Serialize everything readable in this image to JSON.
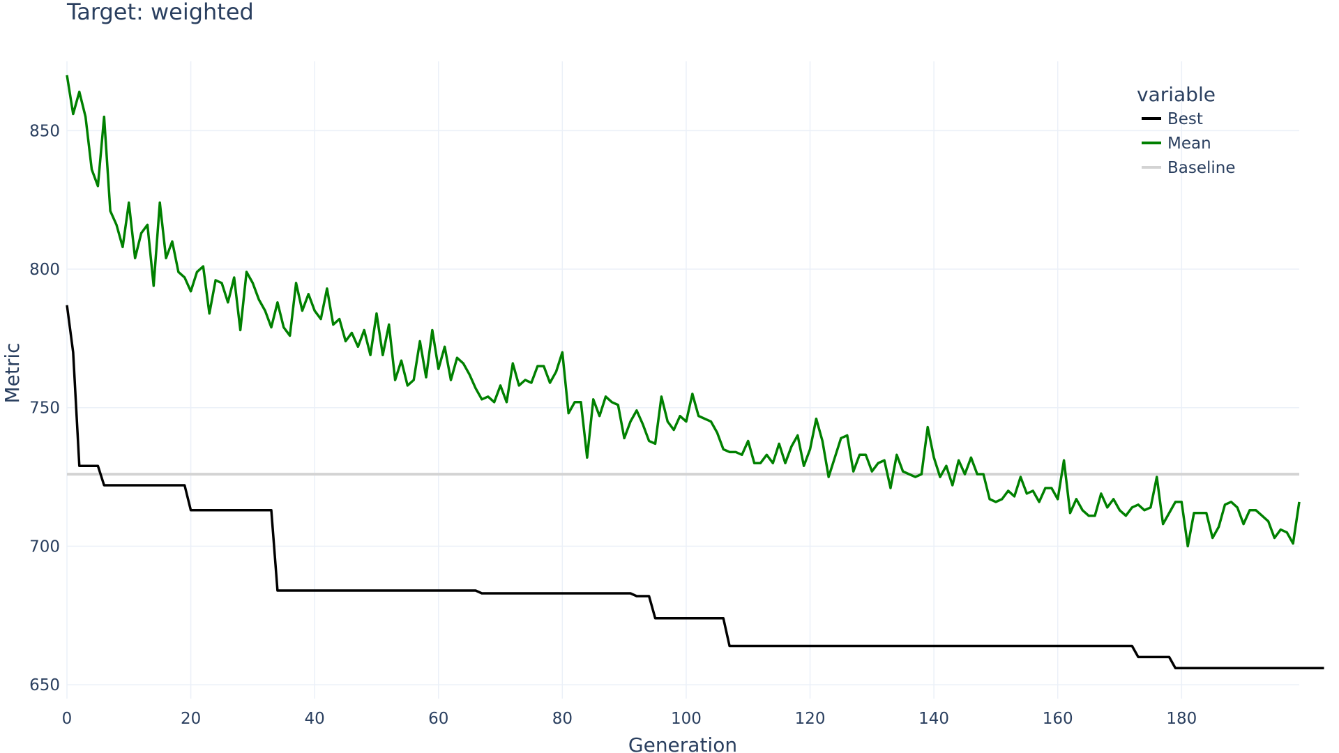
{
  "chart_data": {
    "type": "line",
    "title": "Target: weighted",
    "xlabel": "Generation",
    "ylabel": "Metric",
    "xlim": [
      0,
      199
    ],
    "ylim": [
      645,
      875
    ],
    "x_ticks": [
      0,
      20,
      40,
      60,
      80,
      100,
      120,
      140,
      160,
      180
    ],
    "y_ticks": [
      650,
      700,
      750,
      800,
      850
    ],
    "grid": true,
    "legend": {
      "title": "variable",
      "position": "top-right"
    },
    "series": [
      {
        "name": "Best",
        "color": "#000000",
        "values": [
          787,
          770,
          729,
          729,
          729,
          729,
          722,
          722,
          722,
          722,
          722,
          722,
          722,
          722,
          722,
          722,
          722,
          722,
          722,
          722,
          713,
          713,
          713,
          713,
          713,
          713,
          713,
          713,
          713,
          713,
          713,
          713,
          713,
          713,
          684,
          684,
          684,
          684,
          684,
          684,
          684,
          684,
          684,
          684,
          684,
          684,
          684,
          684,
          684,
          684,
          684,
          684,
          684,
          684,
          684,
          684,
          684,
          684,
          684,
          684,
          684,
          684,
          684,
          684,
          684,
          684,
          684,
          683,
          683,
          683,
          683,
          683,
          683,
          683,
          683,
          683,
          683,
          683,
          683,
          683,
          683,
          683,
          683,
          683,
          683,
          683,
          683,
          683,
          683,
          683,
          683,
          683,
          682,
          682,
          682,
          674,
          674,
          674,
          674,
          674,
          674,
          674,
          674,
          674,
          674,
          674,
          674,
          664,
          664,
          664,
          664,
          664,
          664,
          664,
          664,
          664,
          664,
          664,
          664,
          664,
          664,
          664,
          664,
          664,
          664,
          664,
          664,
          664,
          664,
          664,
          664,
          664,
          664,
          664,
          664,
          664,
          664,
          664,
          664,
          664,
          664,
          664,
          664,
          664,
          664,
          664,
          664,
          664,
          664,
          664,
          664,
          664,
          664,
          664,
          664,
          664,
          664,
          664,
          664,
          664,
          664,
          664,
          664,
          664,
          664,
          664,
          664,
          664,
          664,
          664,
          664,
          664,
          664,
          660,
          660,
          660,
          660,
          660,
          660,
          656,
          656,
          656,
          656,
          656,
          656,
          656,
          656,
          656,
          656,
          656,
          656,
          656,
          656,
          656,
          656,
          656,
          656,
          656,
          656,
          656,
          656,
          656,
          656,
          656
        ]
      },
      {
        "name": "Mean",
        "color": "#008000",
        "values": [
          870,
          856,
          864,
          855,
          836,
          830,
          855,
          821,
          816,
          808,
          824,
          804,
          813,
          816,
          794,
          824,
          804,
          810,
          799,
          797,
          792,
          799,
          801,
          784,
          796,
          795,
          788,
          797,
          778,
          799,
          795,
          789,
          785,
          779,
          788,
          779,
          776,
          795,
          785,
          791,
          785,
          782,
          793,
          780,
          782,
          774,
          777,
          772,
          778,
          769,
          784,
          769,
          780,
          760,
          767,
          758,
          760,
          774,
          761,
          778,
          764,
          772,
          760,
          768,
          766,
          762,
          757,
          753,
          754,
          752,
          758,
          752,
          766,
          758,
          760,
          759,
          765,
          765,
          759,
          763,
          770,
          748,
          752,
          752,
          732,
          753,
          747,
          754,
          752,
          751,
          739,
          745,
          749,
          744,
          738,
          737,
          754,
          745,
          742,
          747,
          745,
          755,
          747,
          746,
          745,
          741,
          735,
          734,
          734,
          733,
          738,
          730,
          730,
          733,
          730,
          737,
          730,
          736,
          740,
          729,
          735,
          746,
          738,
          725,
          732,
          739,
          740,
          727,
          733,
          733,
          727,
          730,
          731,
          721,
          733,
          727,
          726,
          725,
          726,
          743,
          732,
          725,
          729,
          722,
          731,
          726,
          732,
          726,
          726,
          717,
          716,
          717,
          720,
          718,
          725,
          719,
          720,
          716,
          721,
          721,
          717,
          731,
          712,
          717,
          713,
          711,
          711,
          719,
          714,
          717,
          713,
          711,
          714,
          715,
          713,
          714,
          725,
          708,
          712,
          716,
          716,
          700,
          712,
          712,
          712,
          703,
          707,
          715,
          716,
          714,
          708,
          713,
          713,
          711,
          709,
          703,
          706,
          705,
          701,
          716
        ]
      },
      {
        "name": "Baseline",
        "color": "#d3d3d3",
        "values": [
          726,
          726
        ]
      }
    ]
  }
}
